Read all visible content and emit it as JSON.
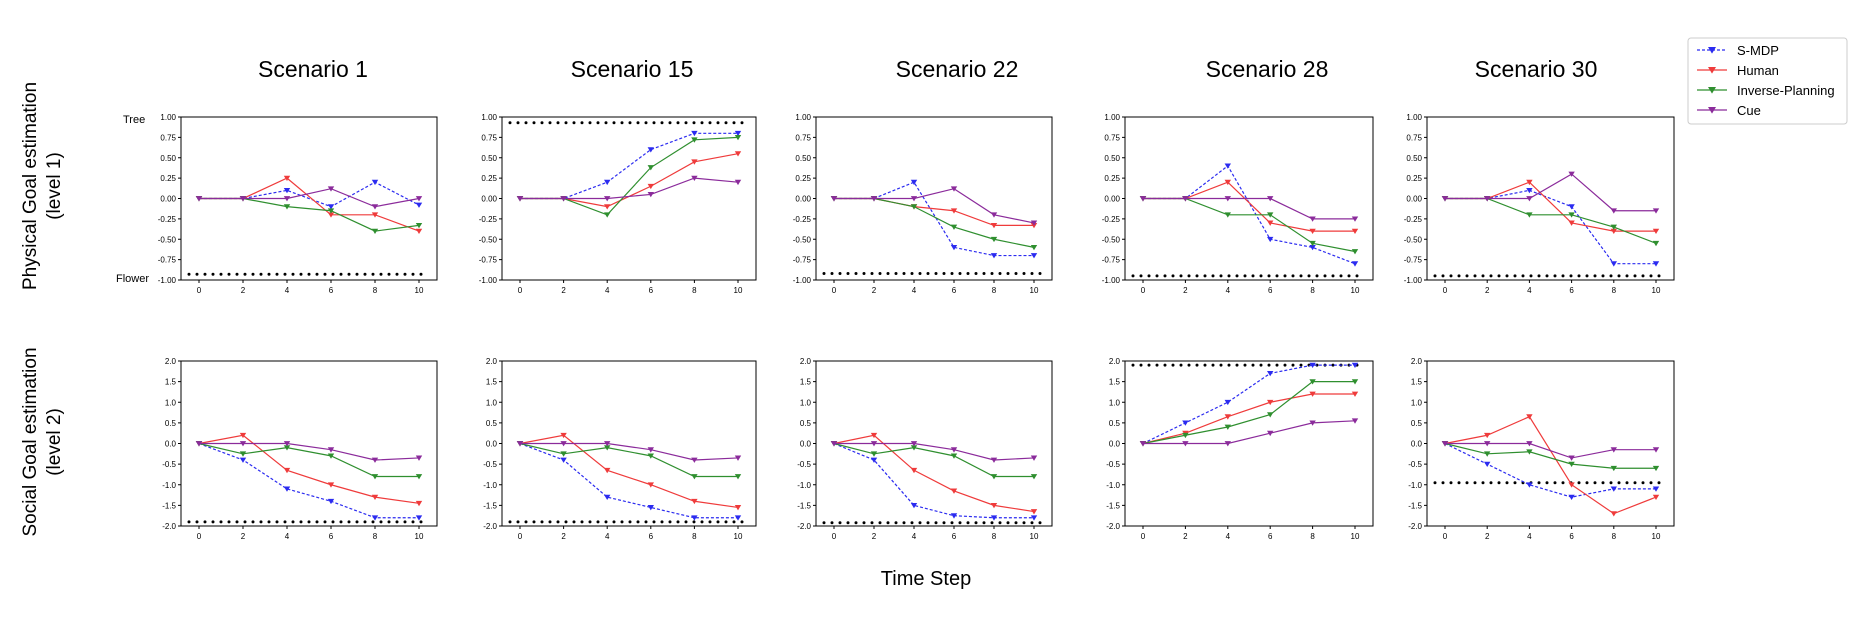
{
  "figure": {
    "xlabel": "Time Step",
    "row_labels": [
      [
        "Physical Goal estimation",
        "(level 1)"
      ],
      [
        "Social Goal estimation",
        "(level 2)"
      ]
    ],
    "tick_text_left": [
      "Tree",
      "Flower"
    ],
    "scenario_titles": [
      "Scenario 1",
      "Scenario 15",
      "Scenario 22",
      "Scenario 28",
      "Scenario 30"
    ]
  },
  "legend": [
    {
      "name": "S-MDP",
      "color": "#2b2bf0",
      "dashed": true,
      "marker": "triangle-down"
    },
    {
      "name": "Human",
      "color": "#ef3b3b",
      "dashed": false,
      "marker": "triangle-down"
    },
    {
      "name": "Inverse-Planning",
      "color": "#2f8f2f",
      "dashed": false,
      "marker": "triangle-down"
    },
    {
      "name": "Cue",
      "color": "#8b2b9b",
      "dashed": false,
      "marker": "triangle-down"
    }
  ],
  "colors": {
    "S-MDP": "#2b2bf0",
    "Human": "#ef3b3b",
    "Inverse-Planning": "#2f8f2f",
    "Cue": "#8b2b9b",
    "reference": "#000000"
  },
  "chart_data": [
    {
      "type": "line",
      "row": 1,
      "title": "Scenario 1",
      "x": [
        0,
        2,
        4,
        6,
        8,
        10
      ],
      "ylim": [
        -1.0,
        1.0
      ],
      "yticks": [
        "1.00",
        "0.75",
        "0.50",
        "0.25",
        "0.00",
        "-0.25",
        "-0.50",
        "-0.75",
        "-1.00"
      ],
      "xticks": [
        "0",
        "2",
        "4",
        "6",
        "8",
        "10"
      ],
      "reference_line": -0.93,
      "series": [
        {
          "name": "S-MDP",
          "values": [
            0,
            0,
            0.1,
            -0.1,
            0.2,
            -0.08
          ]
        },
        {
          "name": "Human",
          "values": [
            0,
            0,
            0.25,
            -0.2,
            -0.2,
            -0.4
          ]
        },
        {
          "name": "Inverse-Planning",
          "values": [
            0,
            0,
            -0.1,
            -0.15,
            -0.4,
            -0.33
          ]
        },
        {
          "name": "Cue",
          "values": [
            0,
            0,
            0,
            0.12,
            -0.1,
            0
          ]
        }
      ]
    },
    {
      "type": "line",
      "row": 1,
      "title": "Scenario 15",
      "x": [
        0,
        2,
        4,
        6,
        8,
        10
      ],
      "ylim": [
        -1.0,
        1.0
      ],
      "yticks": [
        "1.00",
        "0.75",
        "0.50",
        "0.25",
        "0.00",
        "-0.25",
        "-0.50",
        "-0.75",
        "-1.00"
      ],
      "xticks": [
        "0",
        "2",
        "4",
        "6",
        "8",
        "10"
      ],
      "reference_line": 0.93,
      "series": [
        {
          "name": "S-MDP",
          "values": [
            0,
            0,
            0.2,
            0.6,
            0.8,
            0.8
          ]
        },
        {
          "name": "Human",
          "values": [
            0,
            0,
            -0.1,
            0.15,
            0.45,
            0.55
          ]
        },
        {
          "name": "Inverse-Planning",
          "values": [
            0,
            0,
            -0.2,
            0.38,
            0.72,
            0.75
          ]
        },
        {
          "name": "Cue",
          "values": [
            0,
            0,
            0,
            0.05,
            0.25,
            0.2
          ]
        }
      ]
    },
    {
      "type": "line",
      "row": 1,
      "title": "Scenario 22",
      "x": [
        0,
        2,
        4,
        6,
        8,
        10
      ],
      "ylim": [
        -1.0,
        1.0
      ],
      "yticks": [
        "1.00",
        "0.75",
        "0.50",
        "0.25",
        "0.00",
        "-0.25",
        "-0.50",
        "-0.75",
        "-1.00"
      ],
      "xticks": [
        "0",
        "2",
        "4",
        "6",
        "8",
        "10"
      ],
      "reference_line": -0.92,
      "series": [
        {
          "name": "S-MDP",
          "values": [
            0,
            0,
            0.2,
            -0.6,
            -0.7,
            -0.7
          ]
        },
        {
          "name": "Human",
          "values": [
            0,
            0,
            -0.1,
            -0.15,
            -0.33,
            -0.33
          ]
        },
        {
          "name": "Inverse-Planning",
          "values": [
            0,
            0,
            -0.1,
            -0.35,
            -0.5,
            -0.6
          ]
        },
        {
          "name": "Cue",
          "values": [
            0,
            0,
            0,
            0.12,
            -0.2,
            -0.3
          ]
        }
      ]
    },
    {
      "type": "line",
      "row": 1,
      "title": "Scenario 28",
      "x": [
        0,
        2,
        4,
        6,
        8,
        10
      ],
      "ylim": [
        -1.0,
        1.0
      ],
      "yticks": [
        "1.00",
        "0.75",
        "0.50",
        "0.25",
        "0.00",
        "-0.25",
        "-0.50",
        "-0.75",
        "-1.00"
      ],
      "xticks": [
        "0",
        "2",
        "4",
        "6",
        "8",
        "10"
      ],
      "reference_line": -0.95,
      "series": [
        {
          "name": "S-MDP",
          "values": [
            0,
            0,
            0.4,
            -0.5,
            -0.6,
            -0.8
          ]
        },
        {
          "name": "Human",
          "values": [
            0,
            0,
            0.2,
            -0.3,
            -0.4,
            -0.4
          ]
        },
        {
          "name": "Inverse-Planning",
          "values": [
            0,
            0,
            -0.2,
            -0.2,
            -0.55,
            -0.65
          ]
        },
        {
          "name": "Cue",
          "values": [
            0,
            0,
            0,
            0,
            -0.25,
            -0.25
          ]
        }
      ]
    },
    {
      "type": "line",
      "row": 1,
      "title": "Scenario 30",
      "x": [
        0,
        2,
        4,
        6,
        8,
        10
      ],
      "ylim": [
        -1.0,
        1.0
      ],
      "yticks": [
        "1.00",
        "0.75",
        "0.50",
        "0.25",
        "0.00",
        "-0.25",
        "-0.50",
        "-0.75",
        "-1.00"
      ],
      "xticks": [
        "0",
        "2",
        "4",
        "6",
        "8",
        "10"
      ],
      "reference_line": -0.95,
      "series": [
        {
          "name": "S-MDP",
          "values": [
            0,
            0,
            0.1,
            -0.1,
            -0.8,
            -0.8
          ]
        },
        {
          "name": "Human",
          "values": [
            0,
            0,
            0.2,
            -0.3,
            -0.4,
            -0.4
          ]
        },
        {
          "name": "Inverse-Planning",
          "values": [
            0,
            0,
            -0.2,
            -0.2,
            -0.35,
            -0.55
          ]
        },
        {
          "name": "Cue",
          "values": [
            0,
            0,
            0,
            0.3,
            -0.15,
            -0.15
          ]
        }
      ]
    },
    {
      "type": "line",
      "row": 2,
      "x": [
        0,
        2,
        4,
        6,
        8,
        10
      ],
      "ylim": [
        -2.0,
        2.0
      ],
      "yticks": [
        "2.0",
        "1.5",
        "1.0",
        "0.5",
        "0.0",
        "-0.5",
        "-1.0",
        "-1.5",
        "-2.0"
      ],
      "xticks": [
        "0",
        "2",
        "4",
        "6",
        "8",
        "10"
      ],
      "reference_line": -1.9,
      "series": [
        {
          "name": "S-MDP",
          "values": [
            0,
            -0.4,
            -1.1,
            -1.4,
            -1.8,
            -1.8
          ]
        },
        {
          "name": "Human",
          "values": [
            0,
            0.2,
            -0.65,
            -1.0,
            -1.3,
            -1.45
          ]
        },
        {
          "name": "Inverse-Planning",
          "values": [
            0,
            -0.25,
            -0.1,
            -0.3,
            -0.8,
            -0.8
          ]
        },
        {
          "name": "Cue",
          "values": [
            0,
            0,
            0,
            -0.15,
            -0.4,
            -0.35
          ]
        }
      ]
    },
    {
      "type": "line",
      "row": 2,
      "x": [
        0,
        2,
        4,
        6,
        8,
        10
      ],
      "ylim": [
        -2.0,
        2.0
      ],
      "yticks": [
        "2.0",
        "1.5",
        "1.0",
        "0.5",
        "0.0",
        "-0.5",
        "-1.0",
        "-1.5",
        "-2.0"
      ],
      "xticks": [
        "0",
        "2",
        "4",
        "6",
        "8",
        "10"
      ],
      "reference_line": -1.9,
      "series": [
        {
          "name": "S-MDP",
          "values": [
            0,
            -0.4,
            -1.3,
            -1.55,
            -1.8,
            -1.8
          ]
        },
        {
          "name": "Human",
          "values": [
            0,
            0.2,
            -0.65,
            -1.0,
            -1.4,
            -1.55
          ]
        },
        {
          "name": "Inverse-Planning",
          "values": [
            0,
            -0.25,
            -0.1,
            -0.3,
            -0.8,
            -0.8
          ]
        },
        {
          "name": "Cue",
          "values": [
            0,
            0,
            0,
            -0.15,
            -0.4,
            -0.35
          ]
        }
      ]
    },
    {
      "type": "line",
      "row": 2,
      "x": [
        0,
        2,
        4,
        6,
        8,
        10
      ],
      "ylim": [
        -2.0,
        2.0
      ],
      "yticks": [
        "2.0",
        "1.5",
        "1.0",
        "0.5",
        "0.0",
        "-0.5",
        "-1.0",
        "-1.5",
        "-2.0"
      ],
      "xticks": [
        "0",
        "2",
        "4",
        "6",
        "8",
        "10"
      ],
      "reference_line": -1.92,
      "series": [
        {
          "name": "S-MDP",
          "values": [
            0,
            -0.4,
            -1.5,
            -1.75,
            -1.8,
            -1.8
          ]
        },
        {
          "name": "Human",
          "values": [
            0,
            0.2,
            -0.65,
            -1.15,
            -1.5,
            -1.65
          ]
        },
        {
          "name": "Inverse-Planning",
          "values": [
            0,
            -0.25,
            -0.1,
            -0.3,
            -0.8,
            -0.8
          ]
        },
        {
          "name": "Cue",
          "values": [
            0,
            0,
            0,
            -0.15,
            -0.4,
            -0.35
          ]
        }
      ]
    },
    {
      "type": "line",
      "row": 2,
      "x": [
        0,
        2,
        4,
        6,
        8,
        10
      ],
      "ylim": [
        -2.0,
        2.0
      ],
      "yticks": [
        "2.0",
        "1.5",
        "1.0",
        "0.5",
        "0.0",
        "-0.5",
        "-1.0",
        "-1.5",
        "-2.0"
      ],
      "xticks": [
        "0",
        "2",
        "4",
        "6",
        "8",
        "10"
      ],
      "reference_line": 1.9,
      "series": [
        {
          "name": "S-MDP",
          "values": [
            0,
            0.5,
            1.0,
            1.7,
            1.9,
            1.9
          ]
        },
        {
          "name": "Human",
          "values": [
            0,
            0.25,
            0.65,
            1.0,
            1.2,
            1.2
          ]
        },
        {
          "name": "Inverse-Planning",
          "values": [
            0,
            0.2,
            0.4,
            0.7,
            1.5,
            1.5
          ]
        },
        {
          "name": "Cue",
          "values": [
            0,
            0,
            0,
            0.25,
            0.5,
            0.55
          ]
        }
      ]
    },
    {
      "type": "line",
      "row": 2,
      "x": [
        0,
        2,
        4,
        6,
        8,
        10
      ],
      "ylim": [
        -2.0,
        2.0
      ],
      "yticks": [
        "2.0",
        "1.5",
        "1.0",
        "0.5",
        "0.0",
        "-0.5",
        "-1.0",
        "-1.5",
        "-2.0"
      ],
      "xticks": [
        "0",
        "2",
        "4",
        "6",
        "8",
        "10"
      ],
      "reference_line": -0.95,
      "series": [
        {
          "name": "S-MDP",
          "values": [
            0,
            -0.5,
            -1.0,
            -1.3,
            -1.1,
            -1.1
          ]
        },
        {
          "name": "Human",
          "values": [
            0,
            0.2,
            0.65,
            -1.0,
            -1.7,
            -1.3
          ]
        },
        {
          "name": "Inverse-Planning",
          "values": [
            0,
            -0.25,
            -0.2,
            -0.5,
            -0.6,
            -0.6
          ]
        },
        {
          "name": "Cue",
          "values": [
            0,
            0,
            0,
            -0.35,
            -0.15,
            -0.15
          ]
        }
      ]
    }
  ]
}
